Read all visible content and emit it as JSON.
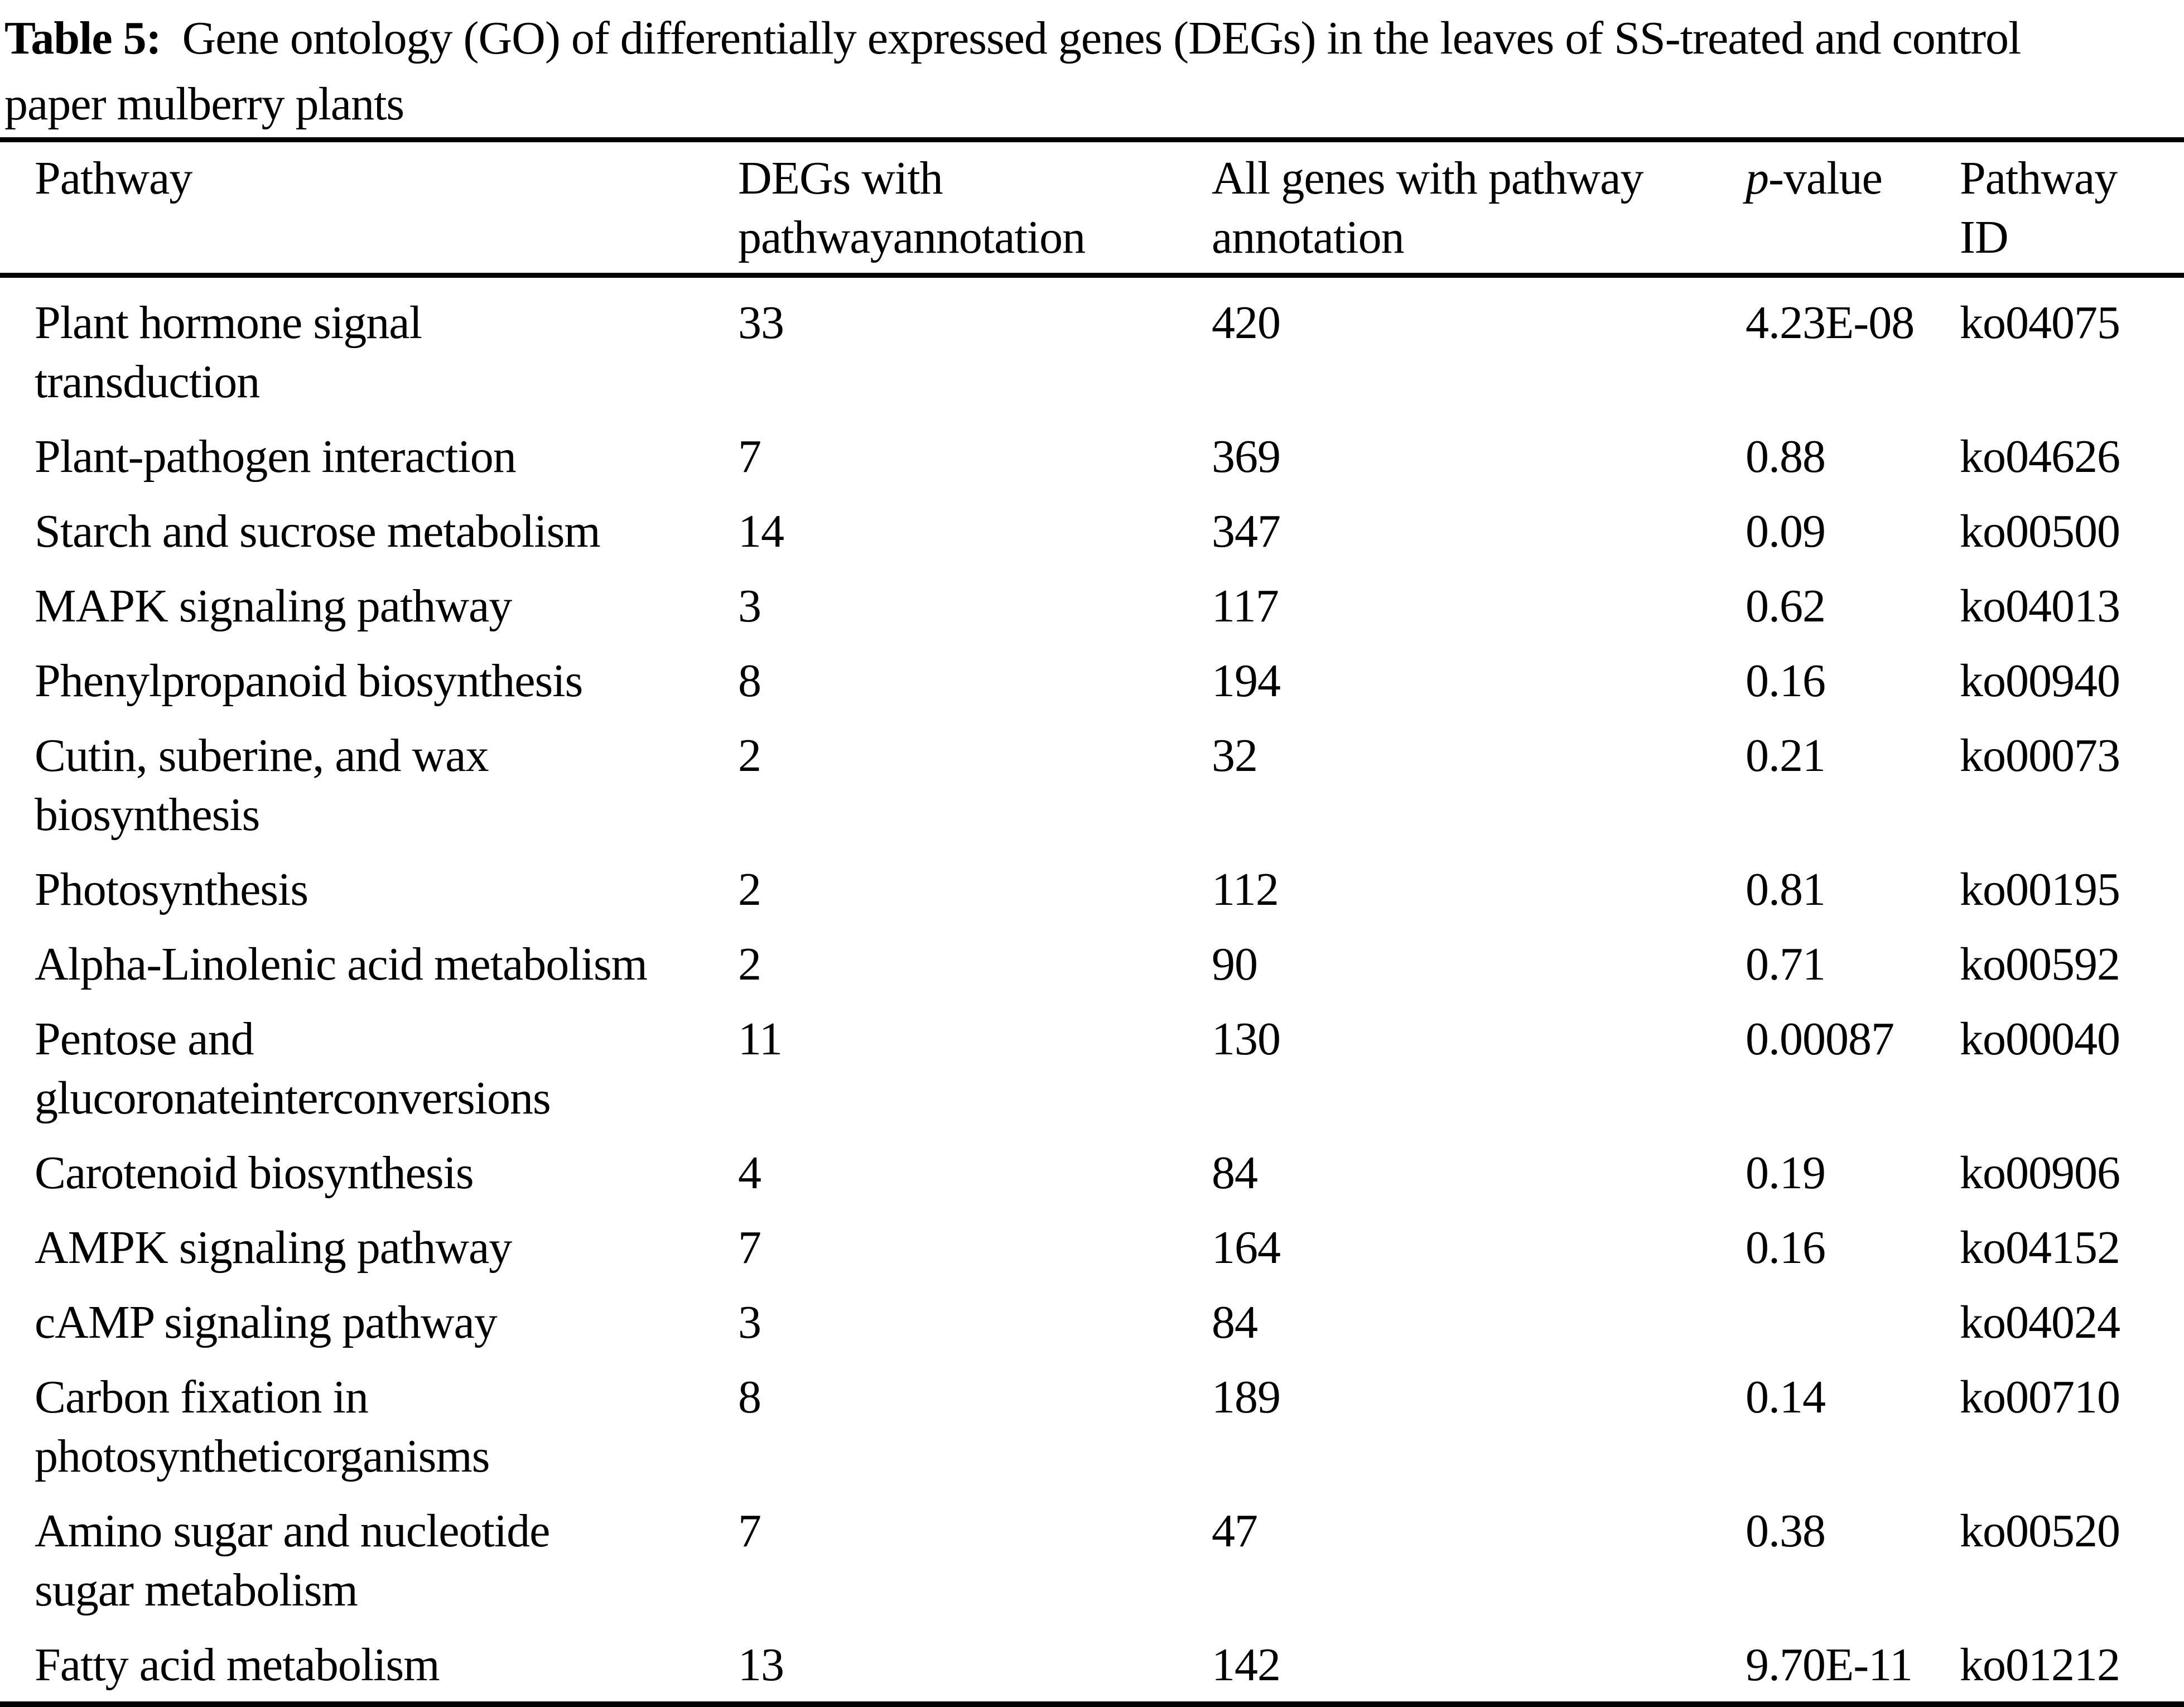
{
  "title": {
    "label": "Table 5:",
    "lines": [
      "Gene ontology (GO) of differentially expressed genes (DEGs) in the leaves of SS-treated and control",
      "paper mulberry plants"
    ]
  },
  "table": {
    "headers": {
      "pathway": "Pathway",
      "degs": [
        "DEGs with",
        "pathwayannotation"
      ],
      "all_genes": [
        "All genes with pathway",
        "annotation"
      ],
      "p_italic": "p",
      "p_rest": "-value",
      "pathway_id": [
        "Pathway",
        "ID"
      ]
    },
    "rows": [
      {
        "pathway": [
          "Plant hormone signal",
          "transduction"
        ],
        "degs": "33",
        "all_genes": "420",
        "p_value": "4.23E-08",
        "pathway_id": "ko04075"
      },
      {
        "pathway": [
          "Plant-pathogen interaction"
        ],
        "degs": "7",
        "all_genes": "369",
        "p_value": "0.88",
        "pathway_id": "ko04626"
      },
      {
        "pathway": [
          "Starch and sucrose metabolism"
        ],
        "degs": "14",
        "all_genes": "347",
        "p_value": "0.09",
        "pathway_id": "ko00500"
      },
      {
        "pathway": [
          "MAPK signaling pathway"
        ],
        "degs": "3",
        "all_genes": "117",
        "p_value": "0.62",
        "pathway_id": "ko04013"
      },
      {
        "pathway": [
          "Phenylpropanoid biosynthesis"
        ],
        "degs": "8",
        "all_genes": "194",
        "p_value": "0.16",
        "pathway_id": "ko00940"
      },
      {
        "pathway": [
          "Cutin, suberine, and wax",
          "biosynthesis"
        ],
        "degs": "2",
        "all_genes": "32",
        "p_value": "0.21",
        "pathway_id": "ko00073"
      },
      {
        "pathway": [
          "Photosynthesis"
        ],
        "degs": "2",
        "all_genes": "112",
        "p_value": "0.81",
        "pathway_id": "ko00195"
      },
      {
        "pathway": [
          "Alpha-Linolenic acid metabolism"
        ],
        "degs": "2",
        "all_genes": "90",
        "p_value": "0.71",
        "pathway_id": "ko00592"
      },
      {
        "pathway": [
          "Pentose and",
          "glucoronateinterconversions"
        ],
        "degs": "11",
        "all_genes": "130",
        "p_value": "0.00087",
        "pathway_id": "ko00040"
      },
      {
        "pathway": [
          "Carotenoid biosynthesis"
        ],
        "degs": "4",
        "all_genes": "84",
        "p_value": "0.19",
        "pathway_id": "ko00906"
      },
      {
        "pathway": [
          "AMPK signaling pathway"
        ],
        "degs": "7",
        "all_genes": "164",
        "p_value": "0.16",
        "pathway_id": "ko04152"
      },
      {
        "pathway": [
          "cAMP signaling pathway"
        ],
        "degs": "3",
        "all_genes": "84",
        "p_value": "",
        "pathway_id": "ko04024"
      },
      {
        "pathway": [
          "Carbon fixation in",
          "photosyntheticorganisms"
        ],
        "degs": "8",
        "all_genes": "189",
        "p_value": "0.14",
        "pathway_id": "ko00710"
      },
      {
        "pathway": [
          "Amino sugar and nucleotide",
          "sugar metabolism"
        ],
        "degs": "7",
        "all_genes": "47",
        "p_value": "0.38",
        "pathway_id": "ko00520"
      },
      {
        "pathway": [
          "Fatty acid metabolism"
        ],
        "degs": "13",
        "all_genes": "142",
        "p_value": "9.70E-11",
        "pathway_id": "ko01212"
      }
    ]
  }
}
